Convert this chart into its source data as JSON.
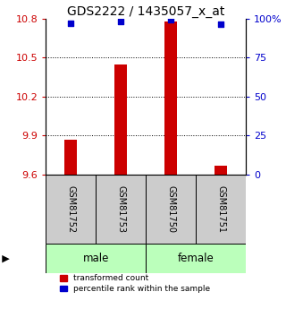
{
  "title": "GDS2222 / 1435057_x_at",
  "samples": [
    "GSM81752",
    "GSM81753",
    "GSM81750",
    "GSM81751"
  ],
  "transformed_counts": [
    9.87,
    10.45,
    10.78,
    9.67
  ],
  "percentile_ranks": [
    97.0,
    98.0,
    99.5,
    96.5
  ],
  "baseline": 9.6,
  "ylim_left": [
    9.6,
    10.8
  ],
  "ylim_right": [
    0,
    100
  ],
  "yticks_left": [
    9.6,
    9.9,
    10.2,
    10.5,
    10.8
  ],
  "yticks_right": [
    0,
    25,
    50,
    75,
    100
  ],
  "ytick_labels_right": [
    "0",
    "25",
    "50",
    "75",
    "100%"
  ],
  "gender": [
    "male",
    "male",
    "female",
    "female"
  ],
  "bar_color": "#cc0000",
  "square_color": "#0000cc",
  "male_color": "#bbffbb",
  "female_color": "#bbffbb",
  "left_axis_color": "#cc0000",
  "right_axis_color": "#0000cc",
  "title_fontsize": 10,
  "tick_fontsize": 8,
  "bar_width": 0.25
}
